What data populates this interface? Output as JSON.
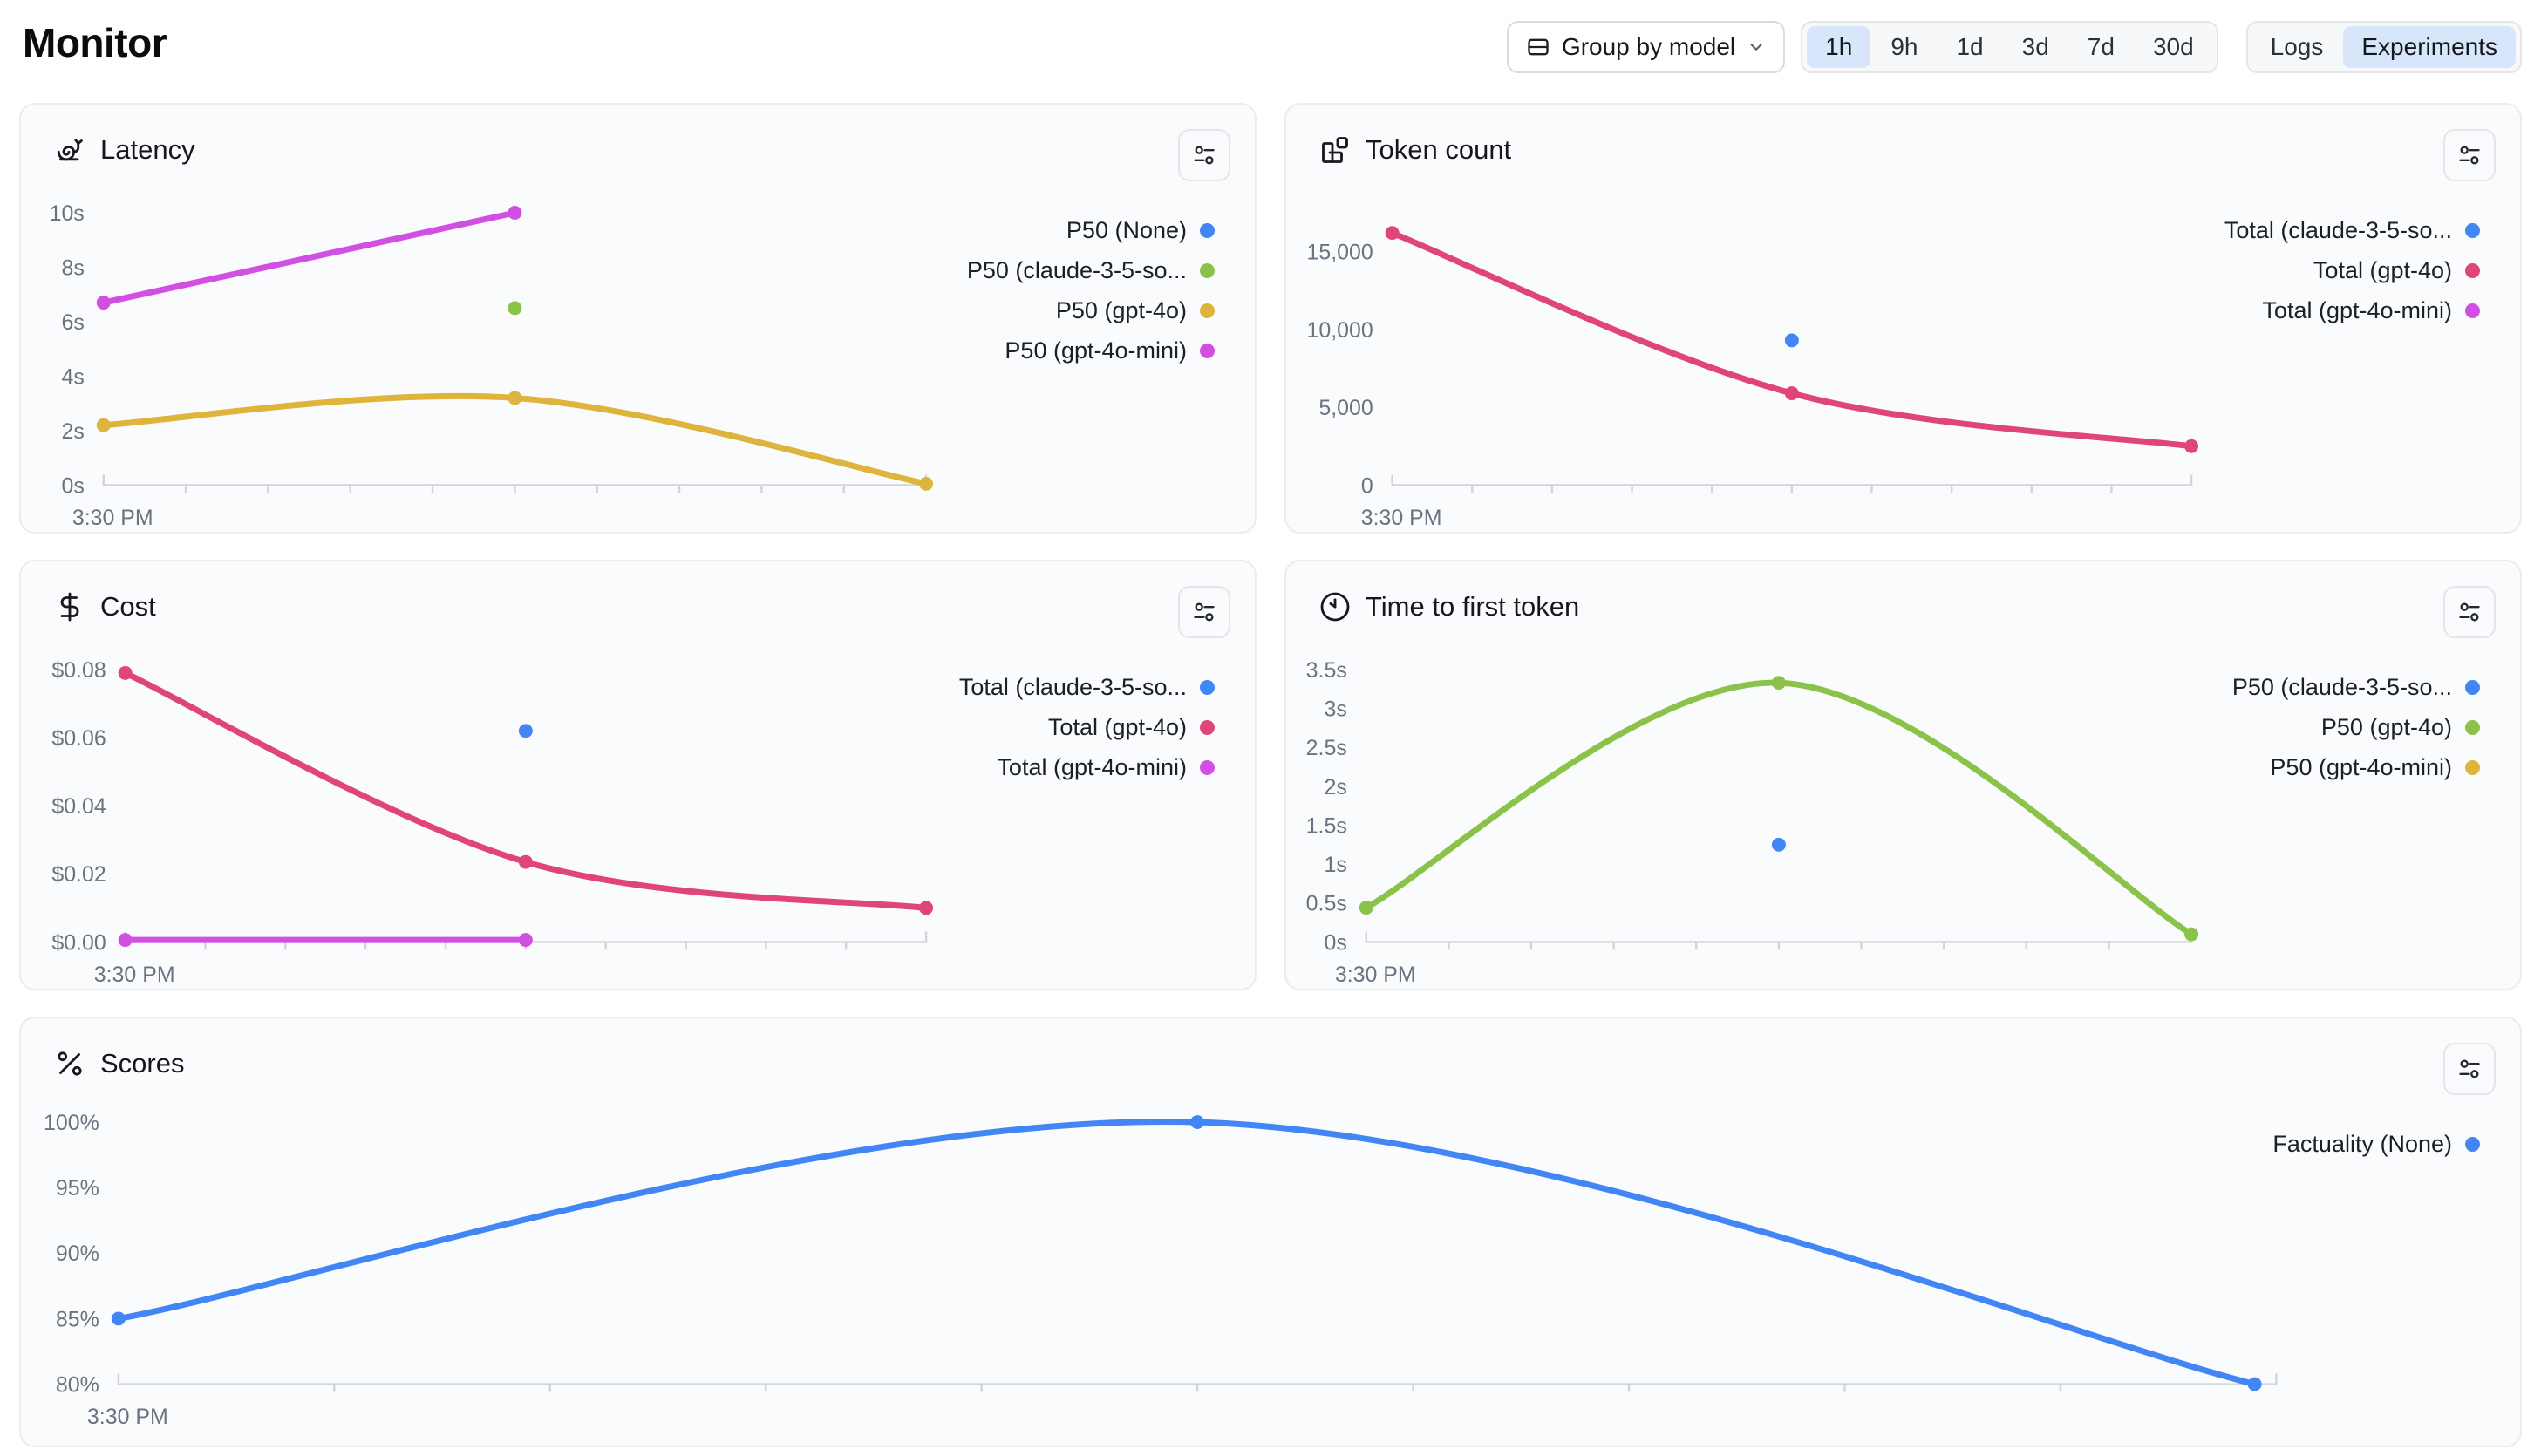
{
  "header": {
    "title": "Monitor",
    "group_by": {
      "label": "Group by model"
    },
    "time_ranges": [
      {
        "label": "1h",
        "selected": true
      },
      {
        "label": "9h",
        "selected": false
      },
      {
        "label": "1d",
        "selected": false
      },
      {
        "label": "3d",
        "selected": false
      },
      {
        "label": "7d",
        "selected": false
      },
      {
        "label": "30d",
        "selected": false
      }
    ],
    "view_toggle": [
      {
        "label": "Logs",
        "selected": false
      },
      {
        "label": "Experiments",
        "selected": true
      }
    ]
  },
  "colors": {
    "blue": "#4285F4",
    "green": "#8BC34A",
    "yellow": "#DFB43C",
    "pink": "#E04579",
    "fuchsia": "#D14FE3",
    "selected_pill_bg": "#D8E6FC",
    "axis_gray": "#D2D5DA",
    "label_gray": "#6B7280"
  },
  "charts": [
    {
      "id": "latency",
      "type": "line",
      "title": "Latency",
      "icon": "snail-icon",
      "x_label": "3:30 PM",
      "ylabel": "seconds",
      "y_ticks": [
        {
          "label": "10s",
          "value": 10
        },
        {
          "label": "8s",
          "value": 8
        },
        {
          "label": "6s",
          "value": 6
        },
        {
          "label": "4s",
          "value": 4
        },
        {
          "label": "2s",
          "value": 2
        },
        {
          "label": "0s",
          "value": 0
        }
      ],
      "series": [
        {
          "name": "P50 (None)",
          "color": "#4285F4",
          "points": []
        },
        {
          "name": "P50 (claude-3-5-so...",
          "color": "#8BC34A",
          "points": [
            {
              "x": 0.5,
              "y": 6.5
            }
          ]
        },
        {
          "name": "P50 (gpt-4o)",
          "color": "#DFB43C",
          "points": [
            {
              "x": 0,
              "y": 2.2
            },
            {
              "x": 0.5,
              "y": 3.2
            },
            {
              "x": 1,
              "y": 0.05
            }
          ]
        },
        {
          "name": "P50 (gpt-4o-mini)",
          "color": "#D14FE3",
          "points": [
            {
              "x": 0,
              "y": 6.7
            },
            {
              "x": 0.5,
              "y": 10
            }
          ]
        }
      ]
    },
    {
      "id": "token_count",
      "type": "line",
      "title": "Token count",
      "icon": "blocks-icon",
      "x_label": "3:30 PM",
      "ylabel": "tokens",
      "y_ticks": [
        {
          "label": "15,000",
          "value": 15000
        },
        {
          "label": "10,000",
          "value": 10000
        },
        {
          "label": "5,000",
          "value": 5000
        },
        {
          "label": "0",
          "value": 0
        }
      ],
      "series": [
        {
          "name": "Total (claude-3-5-so...",
          "color": "#4285F4",
          "points": [
            {
              "x": 0.5,
              "y": 9300
            }
          ]
        },
        {
          "name": "Total (gpt-4o)",
          "color": "#E04579",
          "points": [
            {
              "x": 0,
              "y": 16200
            },
            {
              "x": 0.5,
              "y": 5900
            },
            {
              "x": 1,
              "y": 2500
            }
          ]
        },
        {
          "name": "Total (gpt-4o-mini)",
          "color": "#D14FE3",
          "points": []
        }
      ]
    },
    {
      "id": "cost",
      "type": "line",
      "title": "Cost",
      "icon": "dollar-icon",
      "x_label": "3:30 PM",
      "ylabel": "dollars",
      "y_ticks": [
        {
          "label": "$0.08",
          "value": 0.08
        },
        {
          "label": "$0.06",
          "value": 0.06
        },
        {
          "label": "$0.04",
          "value": 0.04
        },
        {
          "label": "$0.02",
          "value": 0.02
        },
        {
          "label": "$0.00",
          "value": 0
        }
      ],
      "series": [
        {
          "name": "Total (claude-3-5-so...",
          "color": "#4285F4",
          "points": [
            {
              "x": 0.5,
              "y": 0.062
            }
          ]
        },
        {
          "name": "Total (gpt-4o)",
          "color": "#E04579",
          "points": [
            {
              "x": 0,
              "y": 0.079
            },
            {
              "x": 0.5,
              "y": 0.0235
            },
            {
              "x": 1,
              "y": 0.01
            }
          ]
        },
        {
          "name": "Total (gpt-4o-mini)",
          "color": "#D14FE3",
          "points": [
            {
              "x": 0,
              "y": 0.0006
            },
            {
              "x": 0.5,
              "y": 0.0006
            }
          ]
        }
      ]
    },
    {
      "id": "time_to_first_token",
      "type": "line",
      "title": "Time to first token",
      "icon": "clock-icon",
      "x_label": "3:30 PM",
      "ylabel": "seconds",
      "y_ticks": [
        {
          "label": "3.5s",
          "value": 3.5
        },
        {
          "label": "3s",
          "value": 3
        },
        {
          "label": "2.5s",
          "value": 2.5
        },
        {
          "label": "2s",
          "value": 2
        },
        {
          "label": "1.5s",
          "value": 1.5
        },
        {
          "label": "1s",
          "value": 1
        },
        {
          "label": "0.5s",
          "value": 0.5
        },
        {
          "label": "0s",
          "value": 0
        }
      ],
      "series": [
        {
          "name": "P50 (claude-3-5-so...",
          "color": "#4285F4",
          "points": [
            {
              "x": 0.5,
              "y": 1.25
            }
          ]
        },
        {
          "name": "P50 (gpt-4o)",
          "color": "#8BC34A",
          "points": [
            {
              "x": 0,
              "y": 0.44
            },
            {
              "x": 0.5,
              "y": 3.33
            },
            {
              "x": 1,
              "y": 0.1
            }
          ]
        },
        {
          "name": "P50 (gpt-4o-mini)",
          "color": "#DFB43C",
          "points": []
        }
      ]
    },
    {
      "id": "scores",
      "type": "line",
      "title": "Scores",
      "icon": "percent-icon",
      "x_label": "3:30 PM",
      "ylabel": "percent",
      "y_ticks": [
        {
          "label": "100%",
          "value": 100
        },
        {
          "label": "95%",
          "value": 95
        },
        {
          "label": "90%",
          "value": 90
        },
        {
          "label": "85%",
          "value": 85
        },
        {
          "label": "80%",
          "value": 80
        }
      ],
      "series": [
        {
          "name": "Factuality (None)",
          "color": "#4285F4",
          "points": [
            {
              "x": 0,
              "y": 85
            },
            {
              "x": 0.5,
              "y": 100
            },
            {
              "x": 0.99,
              "y": 80
            }
          ]
        }
      ]
    }
  ]
}
